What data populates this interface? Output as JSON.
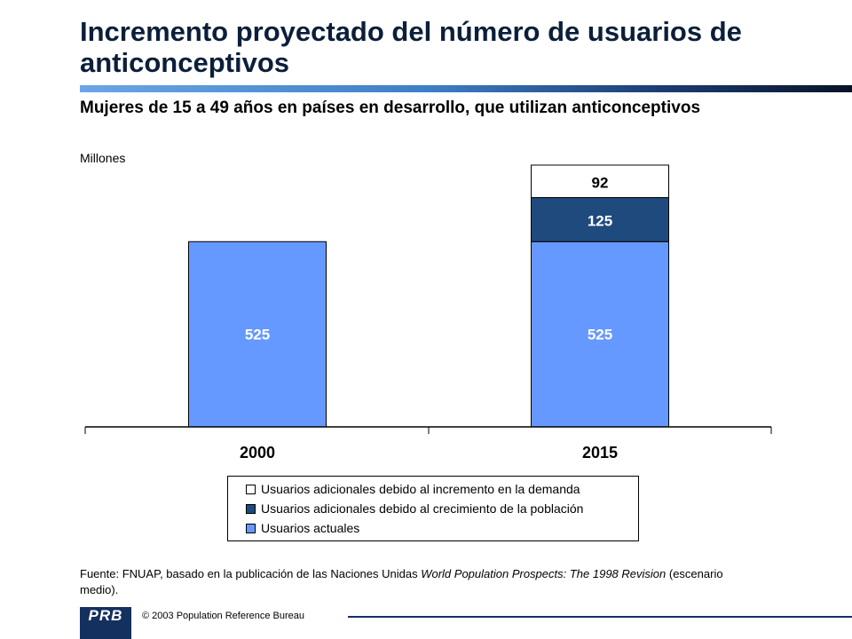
{
  "header": {
    "title": "Incremento proyectado del número de usuarios de anticonceptivos",
    "subtitle": "Mujeres de 15 a 49 años en países en desarrollo, que utilizan anticonceptivos",
    "units": "Millones"
  },
  "chart_data": {
    "type": "bar",
    "stacked": true,
    "categories": [
      "2000",
      "2015"
    ],
    "series": [
      {
        "name": "Usuarios actuales",
        "values": [
          525,
          525
        ],
        "color": "#6699ff"
      },
      {
        "name": "Usuarios adicionales debido al crecimiento de la población",
        "values": [
          0,
          125
        ],
        "color": "#1f4a7e"
      },
      {
        "name": "Usuarios adicionales debido al incremento en la demanda",
        "values": [
          0,
          92
        ],
        "color": "#ffffff"
      }
    ],
    "ylim": [
      0,
      742
    ],
    "legend_position": "bottom",
    "grid": false
  },
  "legend": {
    "items": [
      {
        "label": "Usuarios adicionales debido al incremento en la demanda",
        "color": "#ffffff"
      },
      {
        "label": "Usuarios adicionales debido al crecimiento de la población",
        "color": "#1f4a7e"
      },
      {
        "label": "Usuarios actuales",
        "color": "#6699ff"
      }
    ]
  },
  "source": {
    "prefix": "Fuente: FNUAP, basado en la publicación de las Naciones Unidas ",
    "italic": "World Population Prospects: The 1998 Revision",
    "suffix": " (escenario medio)."
  },
  "footer": {
    "logo": "PRB",
    "copyright": "© 2003 Population Reference Bureau"
  }
}
